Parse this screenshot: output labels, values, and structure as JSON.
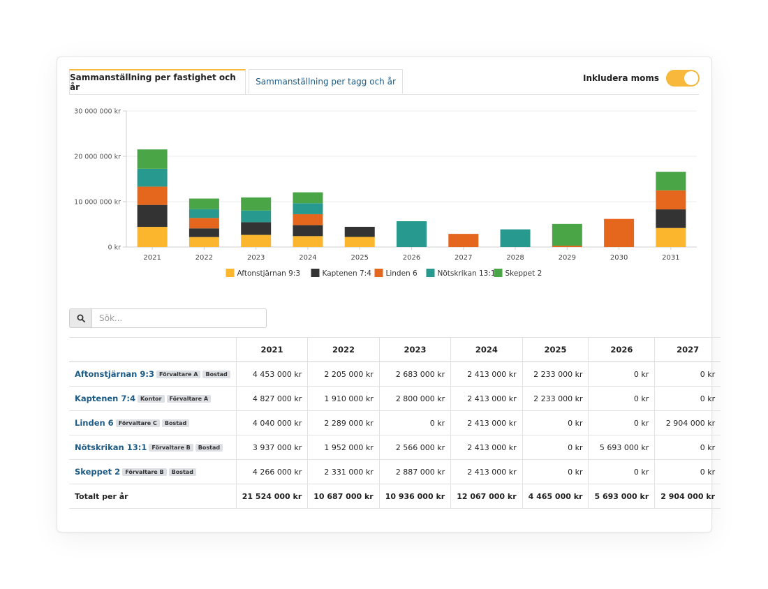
{
  "tabs": {
    "active": "Sammanställning per fastighet och år",
    "inactive": "Sammanställning per tagg och år"
  },
  "toggle": {
    "label": "Inkludera moms",
    "on": true
  },
  "chart_data": {
    "type": "bar",
    "stacked": true,
    "categories": [
      "2021",
      "2022",
      "2023",
      "2024",
      "2025",
      "2026",
      "2027",
      "2028",
      "2029",
      "2030",
      "2031"
    ],
    "y_tick_labels": [
      "0 kr",
      "10 000 000 kr",
      "20 000 000 kr",
      "30 000 000 kr"
    ],
    "ylim": [
      0,
      30000000
    ],
    "y_ticks": [
      0,
      10000000,
      20000000,
      30000000
    ],
    "legend_position": "bottom",
    "series": [
      {
        "name": "Aftonstjärnan 9:3",
        "color": "#fbb62d",
        "values": [
          4453000,
          2205000,
          2683000,
          2413000,
          2233000,
          0,
          0,
          0,
          0,
          0,
          4200000
        ]
      },
      {
        "name": "Kaptenen 7:4",
        "color": "#333333",
        "values": [
          4827000,
          1910000,
          2800000,
          2413000,
          2233000,
          0,
          0,
          0,
          0,
          0,
          4100000
        ]
      },
      {
        "name": "Linden 6",
        "color": "#e4671d",
        "values": [
          4040000,
          2289000,
          0,
          2413000,
          0,
          0,
          2904000,
          0,
          300000,
          6200000,
          4200000
        ]
      },
      {
        "name": "Nötskrikan 13:1",
        "color": "#27998f",
        "values": [
          3937000,
          1952000,
          2566000,
          2413000,
          0,
          5693000,
          0,
          3900000,
          0,
          0,
          0
        ]
      },
      {
        "name": "Skeppet 2",
        "color": "#4aa546",
        "values": [
          4266000,
          2331000,
          2887000,
          2413000,
          0,
          0,
          0,
          0,
          4800000,
          0,
          4100000
        ]
      }
    ]
  },
  "search": {
    "placeholder": "Sök..."
  },
  "table": {
    "years": [
      "2021",
      "2022",
      "2023",
      "2024",
      "2025",
      "2026",
      "2027"
    ],
    "rows": [
      {
        "name": "Aftonstjärnan 9:3",
        "tags": [
          "Förvaltare A",
          "Bostad"
        ],
        "values": [
          "4 453 000 kr",
          "2 205 000 kr",
          "2 683 000 kr",
          "2 413 000 kr",
          "2 233 000 kr",
          "0 kr",
          "0 kr"
        ]
      },
      {
        "name": "Kaptenen 7:4",
        "tags": [
          "Kontor",
          "Förvaltare A"
        ],
        "values": [
          "4 827 000 kr",
          "1 910 000 kr",
          "2 800 000 kr",
          "2 413 000 kr",
          "2 233 000 kr",
          "0 kr",
          "0 kr"
        ]
      },
      {
        "name": "Linden 6",
        "tags": [
          "Förvaltare C",
          "Bostad"
        ],
        "values": [
          "4 040 000 kr",
          "2 289 000 kr",
          "0 kr",
          "2 413 000 kr",
          "0 kr",
          "0 kr",
          "2 904 000 kr"
        ]
      },
      {
        "name": "Nötskrikan 13:1",
        "tags": [
          "Förvaltare B",
          "Bostad"
        ],
        "values": [
          "3 937 000 kr",
          "1 952 000 kr",
          "2 566 000 kr",
          "2 413 000 kr",
          "0 kr",
          "5 693 000 kr",
          "0 kr"
        ]
      },
      {
        "name": "Skeppet 2",
        "tags": [
          "Förvaltare B",
          "Bostad"
        ],
        "values": [
          "4 266 000 kr",
          "2 331 000 kr",
          "2 887 000 kr",
          "2 413 000 kr",
          "0 kr",
          "0 kr",
          "0 kr"
        ]
      }
    ],
    "total_label": "Totalt per år",
    "totals": [
      "21 524 000 kr",
      "10 687 000 kr",
      "10 936 000 kr",
      "12 067 000 kr",
      "4 465 000 kr",
      "5 693 000 kr",
      "2 904 000 kr"
    ]
  }
}
